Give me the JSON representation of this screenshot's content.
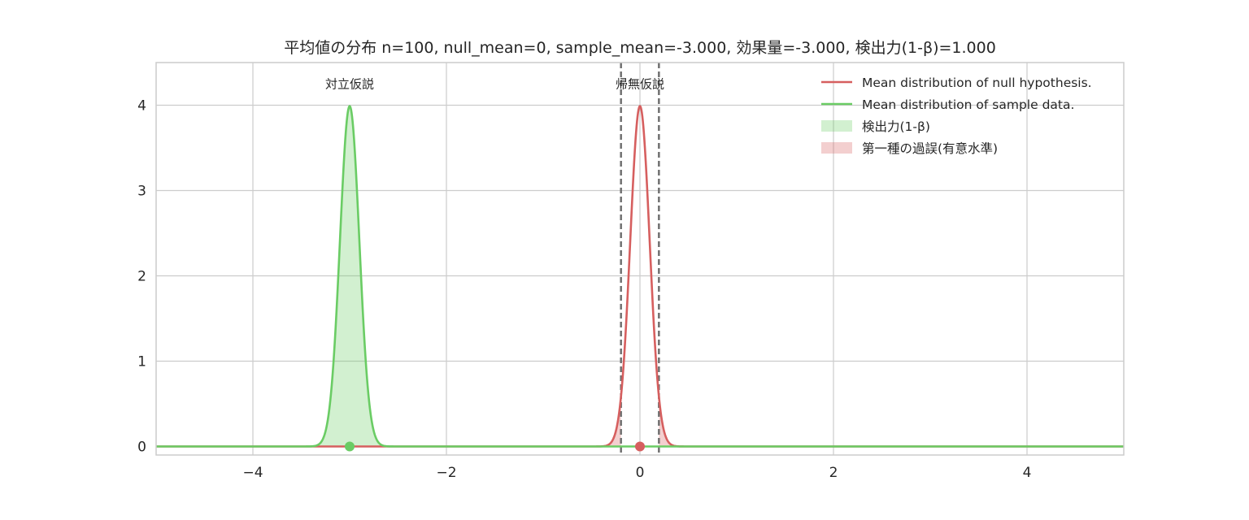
{
  "chart_data": {
    "type": "line",
    "title": "平均値の分布 n=100, null_mean=0, sample_mean=-3.000, 効果量=-3.000, 検出力(1-β)=1.000",
    "xlabel": "",
    "ylabel": "",
    "xlim": [
      -5,
      5
    ],
    "ylim": [
      -0.1,
      4.5
    ],
    "x_ticks": [
      -4,
      -2,
      0,
      2,
      4
    ],
    "x_tick_labels": [
      "−4",
      "−2",
      "0",
      "2",
      "4"
    ],
    "y_ticks": [
      0,
      1,
      2,
      3,
      4
    ],
    "y_tick_labels": [
      "0",
      "1",
      "2",
      "3",
      "4"
    ],
    "grid": true,
    "legend_position": "top-right",
    "series": [
      {
        "name": "Mean distribution of null hypothesis.",
        "kind": "normal_pdf",
        "mean": 0,
        "sd": 0.1,
        "color": "#d65f5f"
      },
      {
        "name": "Mean distribution of sample data.",
        "kind": "normal_pdf",
        "mean": -3,
        "sd": 0.1,
        "color": "#6acc64"
      }
    ],
    "fills": [
      {
        "name": "検出力(1-β)",
        "color": "#6acc64",
        "opacity": 0.3,
        "series_mean": -3,
        "sd": 0.1,
        "region": "x < -0.196"
      },
      {
        "name": "第一種の過誤(有意水準)",
        "color": "#d65f5f",
        "opacity": 0.3,
        "series_mean": 0,
        "sd": 0.1,
        "region": "|x| > 0.196"
      }
    ],
    "critical_values": [
      -0.196,
      0.196
    ],
    "critical_line_color": "#707070",
    "mean_markers": [
      {
        "x": -3,
        "y": 0,
        "color": "#6acc64"
      },
      {
        "x": 0,
        "y": 0,
        "color": "#d65f5f"
      }
    ],
    "annotations": [
      {
        "text": "対立仮説",
        "x": -3,
        "y": 4.25
      },
      {
        "text": "帰無仮説",
        "x": 0,
        "y": 4.25
      }
    ]
  }
}
